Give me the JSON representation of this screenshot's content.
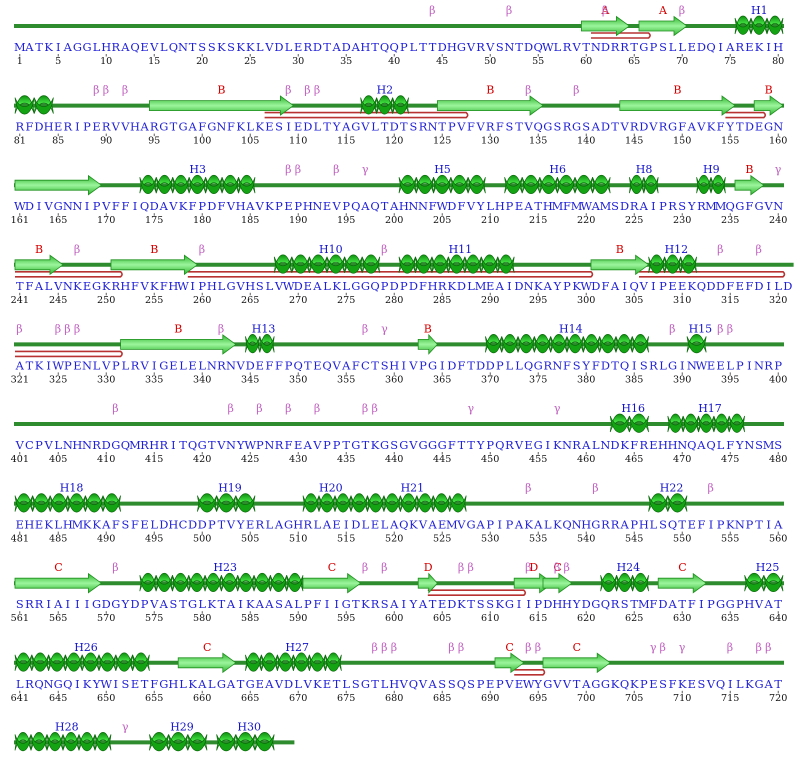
{
  "colors": {
    "backbone": "#2e8b2e",
    "helix": "#22bb22",
    "strand": "#66dd55",
    "hairpin": "#b83232",
    "sequence": "#1f1fd6",
    "helix_label": "#1414c8",
    "strand_label": "#d40000",
    "turn_label": "#c060c0"
  },
  "legend": {
    "helix_prefix": "H",
    "strand_symbol": "B",
    "turn_symbols": [
      "β",
      "γ"
    ],
    "hairpin_symbol": "A"
  },
  "rows": [
    {
      "start": 1,
      "seq": "MATKIAGGLHRAQEVLQNTSSKSKKLVDLERDTADAHTQQPLTTDHGVRVSNTDQWLRVTNDRRTGPSLLEDQIAREKIH",
      "numbers": [
        "1",
        "5",
        "10",
        "15",
        "20",
        "25",
        "30",
        "35",
        "40",
        "45",
        "50",
        "55",
        "60",
        "65",
        "70",
        "75",
        "80"
      ],
      "helices": [
        {
          "label": "H1",
          "s": 76,
          "e": 80
        }
      ],
      "strands": [
        {
          "label": "A",
          "s": 60,
          "e": 64
        },
        {
          "label": "A",
          "s": 66,
          "e": 70
        }
      ],
      "hairpins": [
        {
          "s": 61,
          "e": 66
        }
      ],
      "turns": [
        {
          "sym": "β",
          "r": 44
        },
        {
          "sym": "β",
          "r": 52
        },
        {
          "sym": "β",
          "r": 62
        },
        {
          "sym": "β",
          "r": 70
        }
      ]
    },
    {
      "start": 81,
      "seq": "RFDHERIPERVVHARGTGAFGNFKLKESIEDLTYAGVLTDTSRNTPVFVRFSTVQGSRGSADTVRDVRGFAVKFYTDEGN",
      "numbers": [
        "81",
        "85",
        "90",
        "95",
        "100",
        "105",
        "110",
        "115",
        "120",
        "125",
        "130",
        "135",
        "140",
        "145",
        "150",
        "155",
        "160"
      ],
      "helices": [
        {
          "label": "",
          "s": 1,
          "e": 4
        },
        {
          "label": "H2",
          "s": 37,
          "e": 41
        }
      ],
      "strands": [
        {
          "label": "B",
          "s": 15,
          "e": 29
        },
        {
          "label": "B",
          "s": 45,
          "e": 55
        },
        {
          "label": "B",
          "s": 64,
          "e": 75
        },
        {
          "label": "B",
          "s": 78,
          "e": 80
        }
      ],
      "hairpins": [
        {
          "s": 27,
          "e": 47
        },
        {
          "s": 75,
          "e": 78
        }
      ],
      "turns": [
        {
          "sym": "β",
          "r": 9
        },
        {
          "sym": "β",
          "r": 10
        },
        {
          "sym": "β",
          "r": 12
        },
        {
          "sym": "β",
          "r": 29
        },
        {
          "sym": "β",
          "r": 31
        },
        {
          "sym": "β",
          "r": 32
        },
        {
          "sym": "β",
          "r": 54
        },
        {
          "sym": "β",
          "r": 59
        }
      ]
    },
    {
      "start": 161,
      "seq": "WDIVGNNIPVFFIQDAVKFPDFVHAVKPEPHNEVPQAQTAHNNFWDFVYLHPEATHMFMWAMSDRAIPRSYRMMQGFGVN",
      "numbers": [
        "161",
        "165",
        "170",
        "175",
        "180",
        "185",
        "190",
        "195",
        "200",
        "205",
        "210",
        "215",
        "220",
        "225",
        "230",
        "235",
        "240"
      ],
      "helices": [
        {
          "label": "H3",
          "s": 14,
          "e": 25
        },
        {
          "label": "H5",
          "s": 41,
          "e": 49
        },
        {
          "label": "H6",
          "s": 52,
          "e": 62
        },
        {
          "label": "H8",
          "s": 65,
          "e": 67
        },
        {
          "label": "H9",
          "s": 72,
          "e": 74
        }
      ],
      "strands": [
        {
          "label": "",
          "s": 1,
          "e": 9
        },
        {
          "label": "B",
          "s": 76,
          "e": 78
        }
      ],
      "hairpins": [],
      "turns": [
        {
          "sym": "β",
          "r": 29
        },
        {
          "sym": "β",
          "r": 30
        },
        {
          "sym": "β",
          "r": 34
        },
        {
          "sym": "γ",
          "r": 37
        },
        {
          "sym": "γ",
          "r": 80
        }
      ]
    },
    {
      "start": 241,
      "seq": "TFALVNKEGKRHFVKFHWIPHLGVHSLVWDEALKLGGQPDPDFHRKDLMEAIDNKAYPKWDFAIQVIPEEKQDDFEFDILD",
      "numbers": [
        "241",
        "245",
        "250",
        "255",
        "260",
        "265",
        "270",
        "275",
        "280",
        "285",
        "290",
        "295",
        "300",
        "305",
        "310",
        "315",
        "320"
      ],
      "helices": [
        {
          "label": "H10",
          "s": 28,
          "e": 38
        },
        {
          "label": "H11",
          "s": 41,
          "e": 52
        },
        {
          "label": "H12",
          "s": 67,
          "e": 71
        }
      ],
      "strands": [
        {
          "label": "B",
          "s": 1,
          "e": 5
        },
        {
          "label": "B",
          "s": 11,
          "e": 19
        },
        {
          "label": "B",
          "s": 61,
          "e": 66
        }
      ],
      "hairpins": [
        {
          "s": 1,
          "e": 11
        },
        {
          "s": 19,
          "e": 60
        },
        {
          "s": 66,
          "e": 80
        }
      ],
      "turns": [
        {
          "sym": "β",
          "r": 7
        },
        {
          "sym": "β",
          "r": 20
        },
        {
          "sym": "β",
          "r": 39
        },
        {
          "sym": "β",
          "r": 74
        },
        {
          "sym": "β",
          "r": 78
        }
      ]
    },
    {
      "start": 321,
      "seq": "ATKIWPENLVPLRVIGELELNRNVDEFFPQTEQVAFCTSHIVPGIDFTDDPLLQGRNFSYFDTQISRLGINWEELPINRP",
      "numbers": [
        "321",
        "325",
        "330",
        "335",
        "340",
        "345",
        "350",
        "355",
        "360",
        "365",
        "370",
        "375",
        "380",
        "385",
        "390",
        "395",
        "400"
      ],
      "helices": [
        {
          "label": "H13",
          "s": 25,
          "e": 27
        },
        {
          "label": "H14",
          "s": 50,
          "e": 66
        },
        {
          "label": "H15",
          "s": 71,
          "e": 72
        }
      ],
      "strands": [
        {
          "label": "B",
          "s": 12,
          "e": 23
        },
        {
          "label": "B",
          "s": 43,
          "e": 44
        }
      ],
      "hairpins": [
        {
          "s": 1,
          "e": 11
        }
      ],
      "turns": [
        {
          "sym": "β",
          "r": 1
        },
        {
          "sym": "β",
          "r": 5
        },
        {
          "sym": "β",
          "r": 6
        },
        {
          "sym": "β",
          "r": 7
        },
        {
          "sym": "β",
          "r": 22
        },
        {
          "sym": "β",
          "r": 37
        },
        {
          "sym": "γ",
          "r": 39
        },
        {
          "sym": "β",
          "r": 69
        },
        {
          "sym": "β",
          "r": 74
        },
        {
          "sym": "β",
          "r": 75
        }
      ]
    },
    {
      "start": 401,
      "seq": "VCPVLNHNRDGQMRHRITQGTVNYWPNRFEAVPPTGTKGSGVGGGFTTYPQRVEGIKNRALNDKFREHHNQAQLFYNSMS",
      "numbers": [
        "401",
        "405",
        "410",
        "415",
        "420",
        "425",
        "430",
        "435",
        "440",
        "445",
        "450",
        "455",
        "460",
        "465",
        "470",
        "475",
        "480"
      ],
      "helices": [
        {
          "label": "H16",
          "s": 63,
          "e": 66
        },
        {
          "label": "H17",
          "s": 69,
          "e": 76
        }
      ],
      "strands": [],
      "hairpins": [],
      "turns": [
        {
          "sym": "β",
          "r": 11
        },
        {
          "sym": "β",
          "r": 23
        },
        {
          "sym": "β",
          "r": 26
        },
        {
          "sym": "β",
          "r": 29
        },
        {
          "sym": "β",
          "r": 32
        },
        {
          "sym": "β",
          "r": 37
        },
        {
          "sym": "β",
          "r": 38
        },
        {
          "sym": "γ",
          "r": 48
        },
        {
          "sym": "γ",
          "r": 57
        }
      ]
    },
    {
      "start": 481,
      "seq": "EHEKLHMKKAFSFELDHCDDPTVYERLAGHRLAEIDLELAQKVAEMVGAPIPAKALKQNHGRRAPHLSQTEFIPKNPTIA",
      "numbers": [
        "481",
        "485",
        "490",
        "495",
        "500",
        "505",
        "510",
        "515",
        "520",
        "525",
        "530",
        "535",
        "540",
        "545",
        "550",
        "555",
        "560"
      ],
      "helices": [
        {
          "label": "H18",
          "s": 1,
          "e": 11
        },
        {
          "label": "H19",
          "s": 20,
          "e": 25
        },
        {
          "label": "H20",
          "s": 31,
          "e": 35
        },
        {
          "label": "H21",
          "s": 36,
          "e": 47
        },
        {
          "label": "H22",
          "s": 67,
          "e": 70
        }
      ],
      "strands": [],
      "hairpins": [],
      "turns": [
        {
          "sym": "β",
          "r": 54
        },
        {
          "sym": "β",
          "r": 61
        },
        {
          "sym": "β",
          "r": 73
        }
      ]
    },
    {
      "start": 561,
      "seq": "SRRIAIIIGDGYDPVASTGLKTAIKAASALPFIIGTKRSAIYATEDKTSSKGIIPDHHYDGQRSTMFDATFIPGGPHVAT",
      "numbers": [
        "561",
        "565",
        "570",
        "575",
        "580",
        "585",
        "590",
        "595",
        "600",
        "605",
        "610",
        "615",
        "620",
        "625",
        "630",
        "635",
        "640"
      ],
      "helices": [
        {
          "label": "H23",
          "s": 14,
          "e": 30
        },
        {
          "label": "H24",
          "s": 62,
          "e": 66
        },
        {
          "label": "H25",
          "s": 77,
          "e": 80
        }
      ],
      "strands": [
        {
          "label": "C",
          "s": 1,
          "e": 9
        },
        {
          "label": "C",
          "s": 31,
          "e": 36
        },
        {
          "label": "D",
          "s": 43,
          "e": 44
        },
        {
          "label": "D",
          "s": 53,
          "e": 56
        },
        {
          "label": "C",
          "s": 56,
          "e": 58
        },
        {
          "label": "C",
          "s": 68,
          "e": 72
        }
      ],
      "hairpins": [
        {
          "s": 44,
          "e": 53
        }
      ],
      "turns": [
        {
          "sym": "β",
          "r": 11
        },
        {
          "sym": "β",
          "r": 37
        },
        {
          "sym": "β",
          "r": 39
        },
        {
          "sym": "β",
          "r": 47
        },
        {
          "sym": "β",
          "r": 48
        },
        {
          "sym": "β",
          "r": 54
        },
        {
          "sym": "β",
          "r": 57
        },
        {
          "sym": "β",
          "r": 58
        }
      ]
    },
    {
      "start": 641,
      "seq": "LRQNGQIKYWISETFGHLKALGATGEAVDLVKETLSGTLHVQVASSQSPEPVEWYGVVTAGGKQKPESFKESVQILKGAT",
      "numbers": [
        "641",
        "645",
        "650",
        "655",
        "660",
        "665",
        "670",
        "675",
        "680",
        "685",
        "690",
        "695",
        "700",
        "705",
        "710",
        "715",
        "720"
      ],
      "helices": [
        {
          "label": "H26",
          "s": 1,
          "e": 14
        },
        {
          "label": "H27",
          "s": 25,
          "e": 34
        }
      ],
      "strands": [
        {
          "label": "C",
          "s": 18,
          "e": 23
        },
        {
          "label": "C",
          "s": 51,
          "e": 53
        },
        {
          "label": "C",
          "s": 56,
          "e": 62
        }
      ],
      "hairpins": [
        {
          "s": 53,
          "e": 55
        }
      ],
      "turns": [
        {
          "sym": "β",
          "r": 38
        },
        {
          "sym": "β",
          "r": 39
        },
        {
          "sym": "β",
          "r": 40
        },
        {
          "sym": "β",
          "r": 46
        },
        {
          "sym": "β",
          "r": 47
        },
        {
          "sym": "β",
          "r": 54
        },
        {
          "sym": "β",
          "r": 55
        },
        {
          "sym": "γ",
          "r": 67
        },
        {
          "sym": "β",
          "r": 68
        },
        {
          "sym": "γ",
          "r": 70
        },
        {
          "sym": "β",
          "r": 75
        },
        {
          "sym": "β",
          "r": 78
        },
        {
          "sym": "β",
          "r": 79
        }
      ]
    },
    {
      "start": 721,
      "seq": "DFVGKFFYQISQHRNYQRELDGLASTIAF",
      "numbers": [
        "721",
        "725",
        "730",
        "735",
        "740",
        "745"
      ],
      "helices": [
        {
          "label": "H28",
          "s": 1,
          "e": 10
        },
        {
          "label": "H29",
          "s": 15,
          "e": 20
        },
        {
          "label": "H30",
          "s": 22,
          "e": 27
        }
      ],
      "strands": [],
      "hairpins": [],
      "turns": [
        {
          "sym": "γ",
          "r": 12
        }
      ]
    }
  ]
}
